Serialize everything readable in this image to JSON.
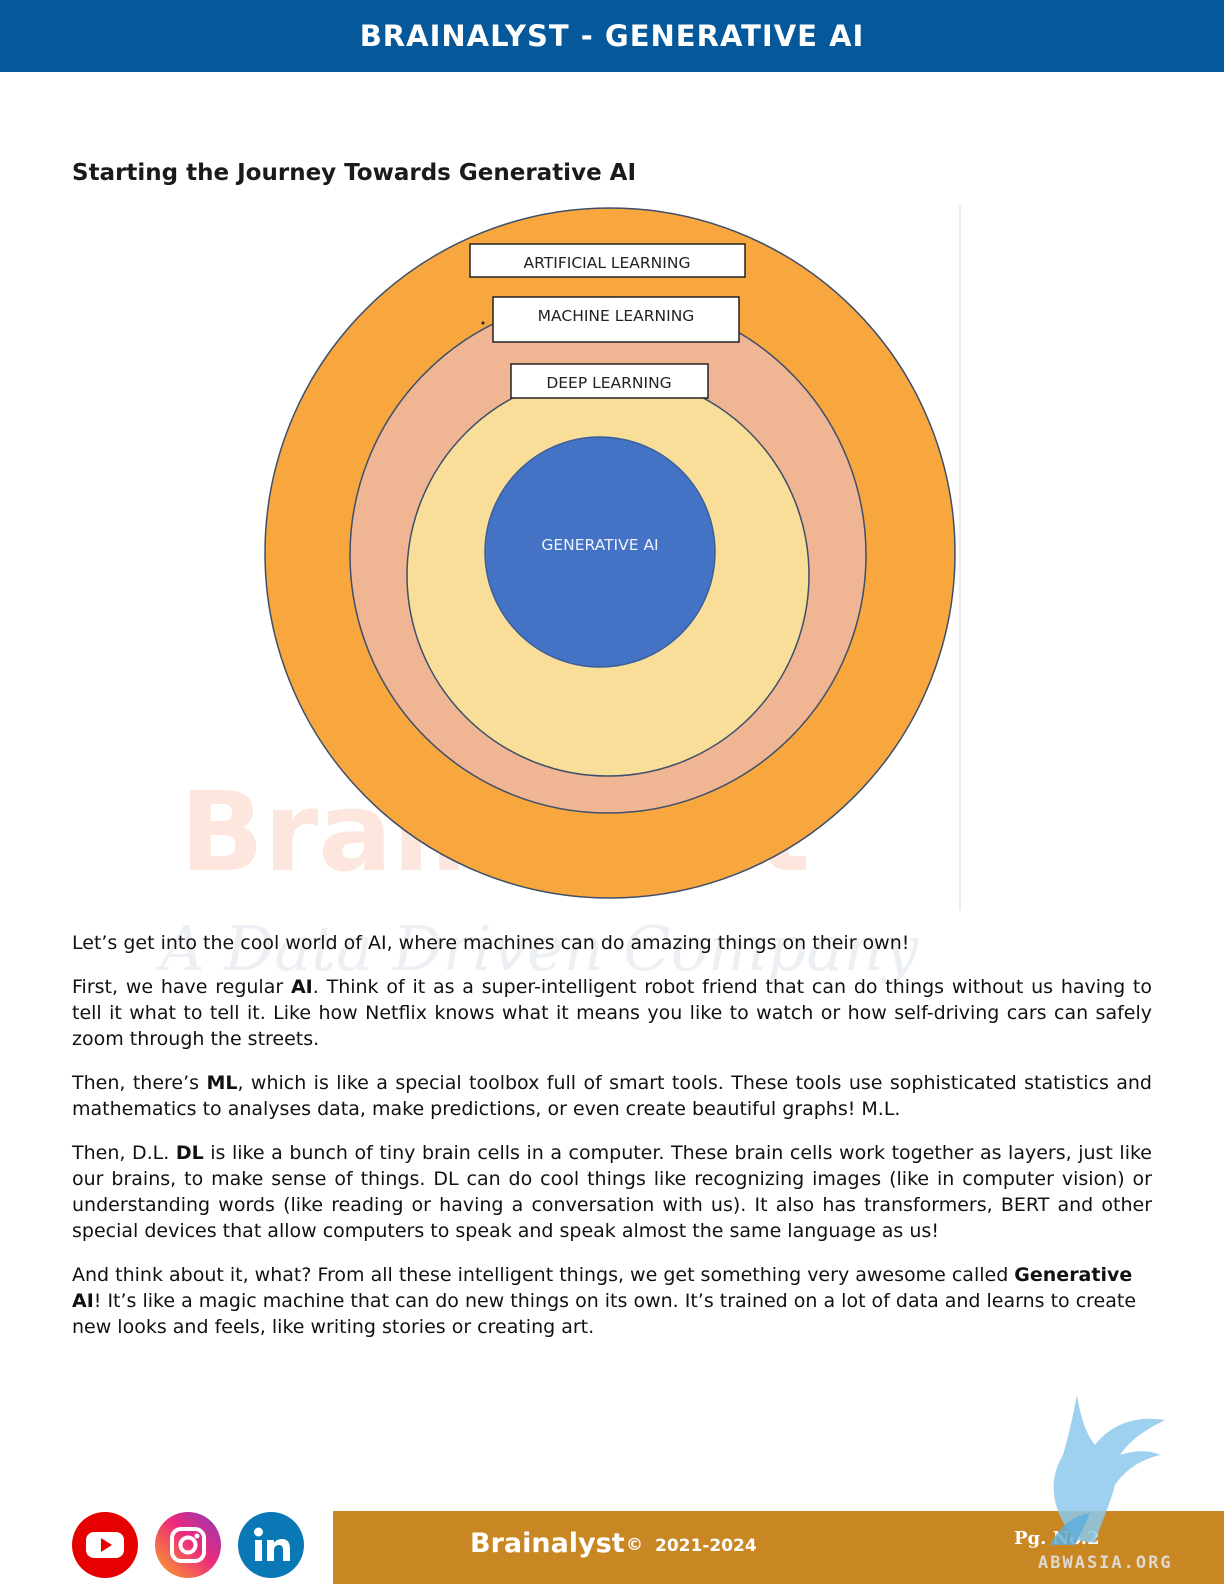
{
  "header": {
    "title": "BRAINALYST - GENERATIVE AI"
  },
  "section_title": "Starting the Journey Towards Generative AI",
  "diagram": {
    "layers": [
      {
        "label": "ARTIFICIAL LEARNING",
        "color": "#f8a73f"
      },
      {
        "label": "MACHINE LEARNING",
        "color": "#f0b593"
      },
      {
        "label": "DEEP LEARNING",
        "color": "#f8de98"
      },
      {
        "label": "GENERATIVE AI",
        "color": "#4472c4"
      }
    ]
  },
  "watermark": {
    "brand": "Brainalyst",
    "tagline": "A Data Driven Company"
  },
  "paragraphs": {
    "p1": "Let’s get into the cool world of AI, where machines can do amazing things on their own!",
    "p2": {
      "pre": "First, we have regular ",
      "bold": "AI",
      "post": ". Think of it as a super-intelligent robot friend that can do things without us having to tell it what to tell it. Like how Netflix knows what it means you like to watch or how self-driving cars can safely zoom through the streets."
    },
    "p3": {
      "pre": "Then, there’s ",
      "bold": "ML",
      "post": ", which is like a special toolbox full of smart tools. These tools use sophisticated statistics and mathematics to analyses data, make predictions, or even create beautiful graphs! M.L."
    },
    "p4": {
      "pre": "Then, D.L. ",
      "bold": "DL",
      "post": " is like a bunch of tiny brain cells in a computer. These brain cells work together as layers, just like our brains, to make sense of things. DL can do cool things like recognizing images (like in computer vision) or understanding words (like reading or having a conversation with us). It also has transformers, BERT and other special devices that allow computers to speak and speak almost the same language as us!"
    },
    "p5": {
      "pre": "And think about it, what? From all these intelligent things, we get something very awesome called ",
      "bold": "Generative AI",
      "post": "! It’s like a magic machine that can do new things on its own. It’s trained on a lot of data and learns to create new looks and feels, like writing stories or creating art."
    }
  },
  "footer": {
    "brand": "Brainalyst",
    "copyright_symbol": "©",
    "years": "2021-2024",
    "page": "Pg. No.2",
    "site": "ABWASIA.ORG"
  },
  "social": [
    "youtube-icon",
    "instagram-icon",
    "linkedin-icon"
  ],
  "colors": {
    "header": "#05589a",
    "footer_bar": "#c98723"
  }
}
